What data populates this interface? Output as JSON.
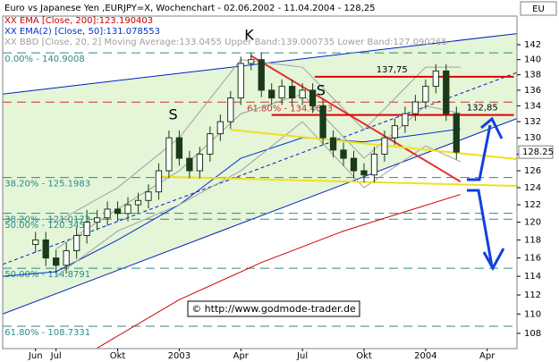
{
  "chart_data": {
    "type": "candlestick",
    "title": "Euro vs Japanese Yen ,EURJPY=X, Wochenchart - 02.06.2002 - 11.04.2004 - 128,25",
    "symbol_box": "EU",
    "copyright": "© http://www.godmode-trader.de",
    "log_scale": true,
    "xlim": [
      -1.6,
      23.45
    ],
    "ylim": [
      106.45,
      145.9
    ],
    "xticks": [
      {
        "value": 0,
        "label": "Jun"
      },
      {
        "value": 1,
        "label": "Jul"
      },
      {
        "value": 4,
        "label": "Okt"
      },
      {
        "value": 7,
        "label": "2003"
      },
      {
        "value": 10,
        "label": "Apr"
      },
      {
        "value": 13,
        "label": "Jul"
      },
      {
        "value": 16,
        "label": "Okt"
      },
      {
        "value": 19,
        "label": "2004"
      },
      {
        "value": 22,
        "label": "Apr"
      }
    ],
    "yticks": [
      108,
      110,
      112,
      114,
      116,
      118,
      120,
      122,
      124,
      126,
      128,
      130,
      132,
      134,
      136,
      138,
      140,
      142
    ],
    "up_color": "#ffffff",
    "down_color": "#1a3a1a",
    "x": [
      0,
      0.5,
      1,
      1.5,
      2,
      2.5,
      3,
      3.5,
      4,
      4.5,
      5,
      5.5,
      6,
      6.5,
      7,
      7.5,
      8,
      8.5,
      9,
      9.5,
      10,
      10.5,
      11,
      11.5,
      12,
      12.5,
      13,
      13.5,
      14,
      14.5,
      15,
      15.5,
      16,
      16.5,
      17,
      17.5,
      18,
      18.5,
      19,
      19.5,
      20,
      20.5
    ],
    "open": [
      117.5,
      118,
      116,
      115.2,
      116.8,
      118.5,
      120,
      120.5,
      121.5,
      121,
      122,
      122.5,
      123.5,
      126,
      130,
      127.5,
      126,
      128,
      130.5,
      132,
      135,
      139.5,
      140,
      136,
      135,
      136.5,
      135,
      136,
      134,
      130,
      128.5,
      127.5,
      126,
      125.5,
      128,
      130,
      131.5,
      133,
      134.5,
      136.5,
      138.5,
      133
    ],
    "high": [
      118.9,
      118.9,
      116.9,
      117.7,
      119.4,
      121.4,
      121.4,
      122.4,
      122.4,
      122.9,
      123.4,
      124.4,
      126.9,
      130.9,
      130.9,
      128.4,
      128.9,
      131.4,
      132.9,
      135.9,
      140.4,
      140.9,
      140.9,
      136.9,
      137.4,
      137.4,
      136.9,
      136.9,
      134.9,
      130.9,
      129.4,
      128.4,
      126.9,
      128.9,
      130.9,
      132.4,
      133.9,
      135.4,
      137.4,
      139.4,
      139.4,
      133.9
    ],
    "low": [
      116.6,
      115.1,
      114.3,
      114.3,
      115.9,
      117.6,
      119.1,
      119.6,
      120.1,
      120.1,
      121.1,
      121.6,
      122.6,
      125.1,
      126.6,
      125.1,
      125.1,
      127.1,
      129.6,
      131.1,
      134.1,
      138.6,
      135.1,
      134.1,
      134.1,
      134.1,
      134.1,
      133.1,
      129.1,
      127.6,
      126.6,
      125.1,
      124.6,
      124.6,
      127.1,
      129.1,
      130.6,
      132.1,
      133.6,
      135.6,
      132.1,
      127.35
    ],
    "close": [
      118,
      116,
      115.2,
      116.8,
      118.5,
      120,
      120.5,
      121.5,
      121,
      122,
      122.5,
      123.5,
      126,
      130,
      127.5,
      126,
      128,
      130.5,
      132,
      135,
      139.5,
      140,
      136,
      135,
      136.5,
      135,
      136,
      134,
      130,
      128.5,
      127.5,
      126,
      125.5,
      128,
      130,
      131.5,
      133,
      134.5,
      136.5,
      138.5,
      133,
      128.25
    ],
    "last_price": {
      "value": 128.25,
      "label": "128.25"
    },
    "series": [
      {
        "name": "XX EMA [Close, 200]:123.190403",
        "color": "#d00000",
        "x": [
          3,
          7,
          11,
          15,
          18,
          20.7
        ],
        "values": [
          106.5,
          111.5,
          115.5,
          119,
          121.2,
          123.2
        ]
      },
      {
        "name": "XX EMA(2) [Close, 50]:131.078553",
        "color": "#0030d0",
        "x": [
          -1.6,
          1,
          4,
          7,
          10,
          13,
          16,
          19,
          20.7
        ],
        "values": [
          114,
          114.5,
          118,
          122,
          127.5,
          130,
          129.5,
          130.5,
          131.1
        ]
      },
      {
        "name": "XX BBD [Close, 20, 2] Moving Average:133.0455 Upper Band:139.000735 Lower Band:127.090265",
        "color": "#a0a0a0",
        "x": [
          1,
          4,
          7,
          10,
          13,
          16,
          19,
          20.7
        ],
        "values": [
          117,
          121.5,
          126,
          133,
          135.5,
          127.5,
          134,
          133.05
        ],
        "upper": [
          120,
          124,
          130,
          140,
          139,
          131,
          139,
          139.0
        ],
        "lower": [
          114,
          119,
          122,
          126,
          132,
          124,
          129,
          127.09
        ]
      }
    ],
    "channel": {
      "color": "#0020c0",
      "fill": "#e4f5d8",
      "x": [
        -1.6,
        23.45
      ],
      "upper": [
        135.5,
        143.5
      ],
      "middle": [
        115.3,
        138.3
      ],
      "lower": [
        110,
        132.4
      ]
    },
    "trendlines": [
      {
        "color": "#e03030",
        "x": [
          10.5,
          20.7
        ],
        "values": [
          140.5,
          124.7
        ]
      },
      {
        "color": "#f0e020",
        "x": [
          9.5,
          23.45
        ],
        "values": [
          131,
          127.4
        ]
      },
      {
        "color": "#f0e020",
        "x": [
          6,
          23.45
        ],
        "values": [
          125.3,
          124.2
        ]
      }
    ],
    "fib_levels": [
      {
        "value": 140.9008,
        "label": "0.00% - 140.9008",
        "color": "#2a8a8a",
        "x": -1.5
      },
      {
        "value": 134.4683,
        "label": "61.80% - 134.4683",
        "color": "#d03030",
        "x": 10.3
      },
      {
        "value": 125.1983,
        "label": "38.20% - 125.1983",
        "color": "#2a8a8a",
        "x": -1.5
      },
      {
        "value": 121.0173,
        "label": "38.20% - 121.0173",
        "color": "#2a8a8a",
        "x": -1.5
      },
      {
        "value": 120.345,
        "label": "50.00% - 120.345",
        "color": "#2a8a8a",
        "x": -1.5
      },
      {
        "value": 114.8791,
        "label": "50.00% - 114.8791",
        "color": "#2a8a8a",
        "x": -1.5
      },
      {
        "value": 108.7331,
        "label": "61.80% - 108.7331",
        "color": "#2a8a8a",
        "x": -1.5
      }
    ],
    "levels": [
      {
        "value": 137.75,
        "label": "137,75",
        "color": "#e00000",
        "x": [
          13.6,
          23.3
        ],
        "label_x": 16.6
      },
      {
        "value": 132.85,
        "label": "132,85",
        "color": "#e00000",
        "x": [
          11.5,
          23.3
        ],
        "label_x": 21
      }
    ],
    "annotations": [
      {
        "text": "K",
        "x": 10.4,
        "y": 143.2
      },
      {
        "text": "S",
        "x": 6.7,
        "y": 132.8
      },
      {
        "text": "S",
        "x": 13.9,
        "y": 135.9
      }
    ]
  }
}
